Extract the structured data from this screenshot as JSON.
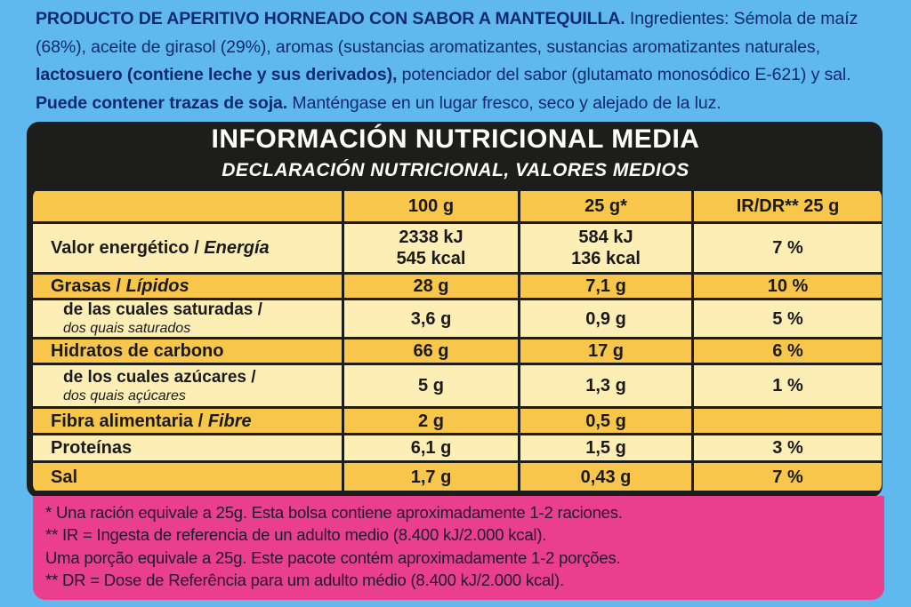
{
  "ingredients": {
    "product_name": "PRODUCTO DE APERITIVO HORNEADO CON SABOR A MANTEQUILLA.",
    "text1": " Ingredientes: Sémola de maíz (68%), aceite de girasol (29%), aromas (sustancias aromatizantes, sustancias aromatizantes naturales, ",
    "allergen": "lactosuero (contiene leche y sus derivados),",
    "text2": " potenciador del sabor (glutamato monosódico E-621) y sal. ",
    "traces": "Puede contener trazas de soja.",
    "text3": " Manténgase en un lugar fresco, seco y alejado de la luz."
  },
  "title": "INFORMACIÓN NUTRICIONAL MEDIA",
  "subtitle": "DECLARACIÓN NUTRICIONAL, VALORES MEDIOS",
  "table": {
    "headers": [
      "",
      "100 g",
      "25 g*",
      "IR/DR** 25 g"
    ],
    "rows": [
      {
        "label": "Valor energético / ",
        "label_it": "Energía",
        "v100": "2338 kJ\n545 kcal",
        "v25": "584 kJ\n136 kcal",
        "ir": "7 %"
      },
      {
        "label": "Grasas / ",
        "label_it": "Lípidos",
        "v100": "28 g",
        "v25": "7,1 g",
        "ir": "10 %"
      },
      {
        "sub1": "de las cuales saturadas /",
        "sub2": "dos quais saturados",
        "v100": "3,6 g",
        "v25": "0,9 g",
        "ir": "5 %"
      },
      {
        "label": "Hidratos de carbono",
        "label_it": "",
        "v100": "66 g",
        "v25": "17 g",
        "ir": "6 %"
      },
      {
        "sub1": "de los cuales azúcares /",
        "sub2": "dos quais açúcares",
        "v100": "5 g",
        "v25": "1,3 g",
        "ir": "1 %"
      },
      {
        "label": "Fibra alimentaria / ",
        "label_it": "Fibre",
        "v100": "2 g",
        "v25": "0,5 g",
        "ir": ""
      },
      {
        "label": "Proteínas",
        "label_it": "",
        "v100": "6,1 g",
        "v25": "1,5 g",
        "ir": "3 %"
      },
      {
        "label": "Sal",
        "label_it": "",
        "v100": "1,7 g",
        "v25": "0,43 g",
        "ir": "7 %"
      }
    ]
  },
  "footnotes": [
    "* Una ración equivale a 25g. Esta bolsa contiene aproximadamente 1-2 raciones.",
    "** IR = Ingesta de referencia de un adulto medio (8.400 kJ/2.000 kcal).",
    " Uma porção equivale a 25g. Este pacote contém aproximadamente 1-2 porções.",
    "** DR = Dose de Referência para um adulto médio (8.400 kJ/2.000 kcal)."
  ],
  "colors": {
    "background": "#5fb8ee",
    "panel": "#1d1d1b",
    "row_dark": "#f7c64a",
    "row_light": "#fdeeb6",
    "footnote_bg": "#ea3e8f",
    "ingredient_text": "#0f2a6e"
  }
}
